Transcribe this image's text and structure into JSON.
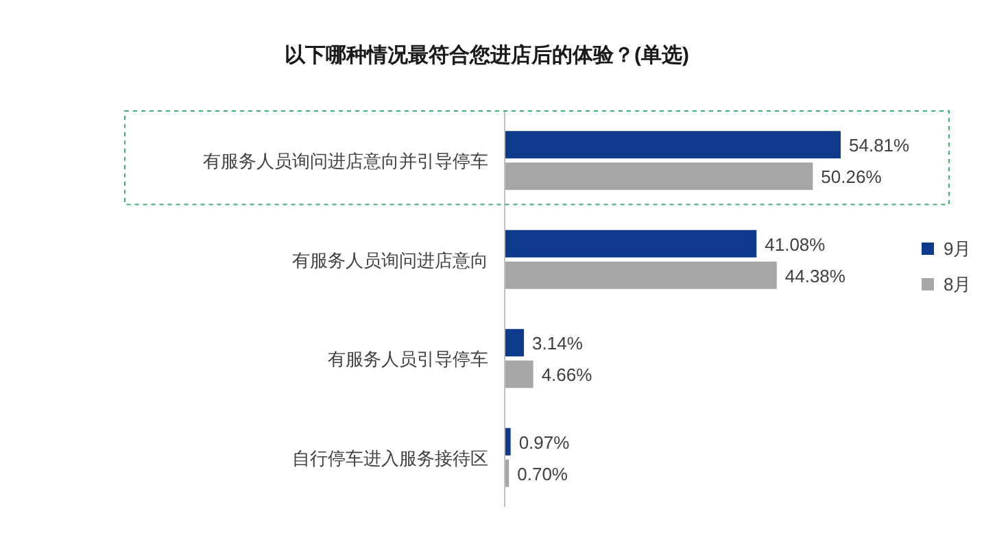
{
  "chart_data": {
    "type": "bar",
    "orientation": "horizontal",
    "title": "以下哪种情况最符合您进店后的体验？(单选)",
    "categories": [
      "有服务人员询问进店意向并引导停车",
      "有服务人员询问进店意向",
      "有服务人员引导停车",
      "自行停车进入服务接待区"
    ],
    "series": [
      {
        "name": "9月",
        "color": "#0e3a8c",
        "values": [
          54.81,
          41.08,
          3.14,
          0.97
        ],
        "value_labels": [
          "54.81%",
          "41.08%",
          "3.14%",
          "0.97%"
        ]
      },
      {
        "name": "8月",
        "color": "#a6a6a6",
        "values": [
          50.26,
          44.38,
          4.66,
          0.7
        ],
        "value_labels": [
          "50.26%",
          "44.38%",
          "4.66%",
          "0.70%"
        ]
      }
    ],
    "legend": "right"
  }
}
